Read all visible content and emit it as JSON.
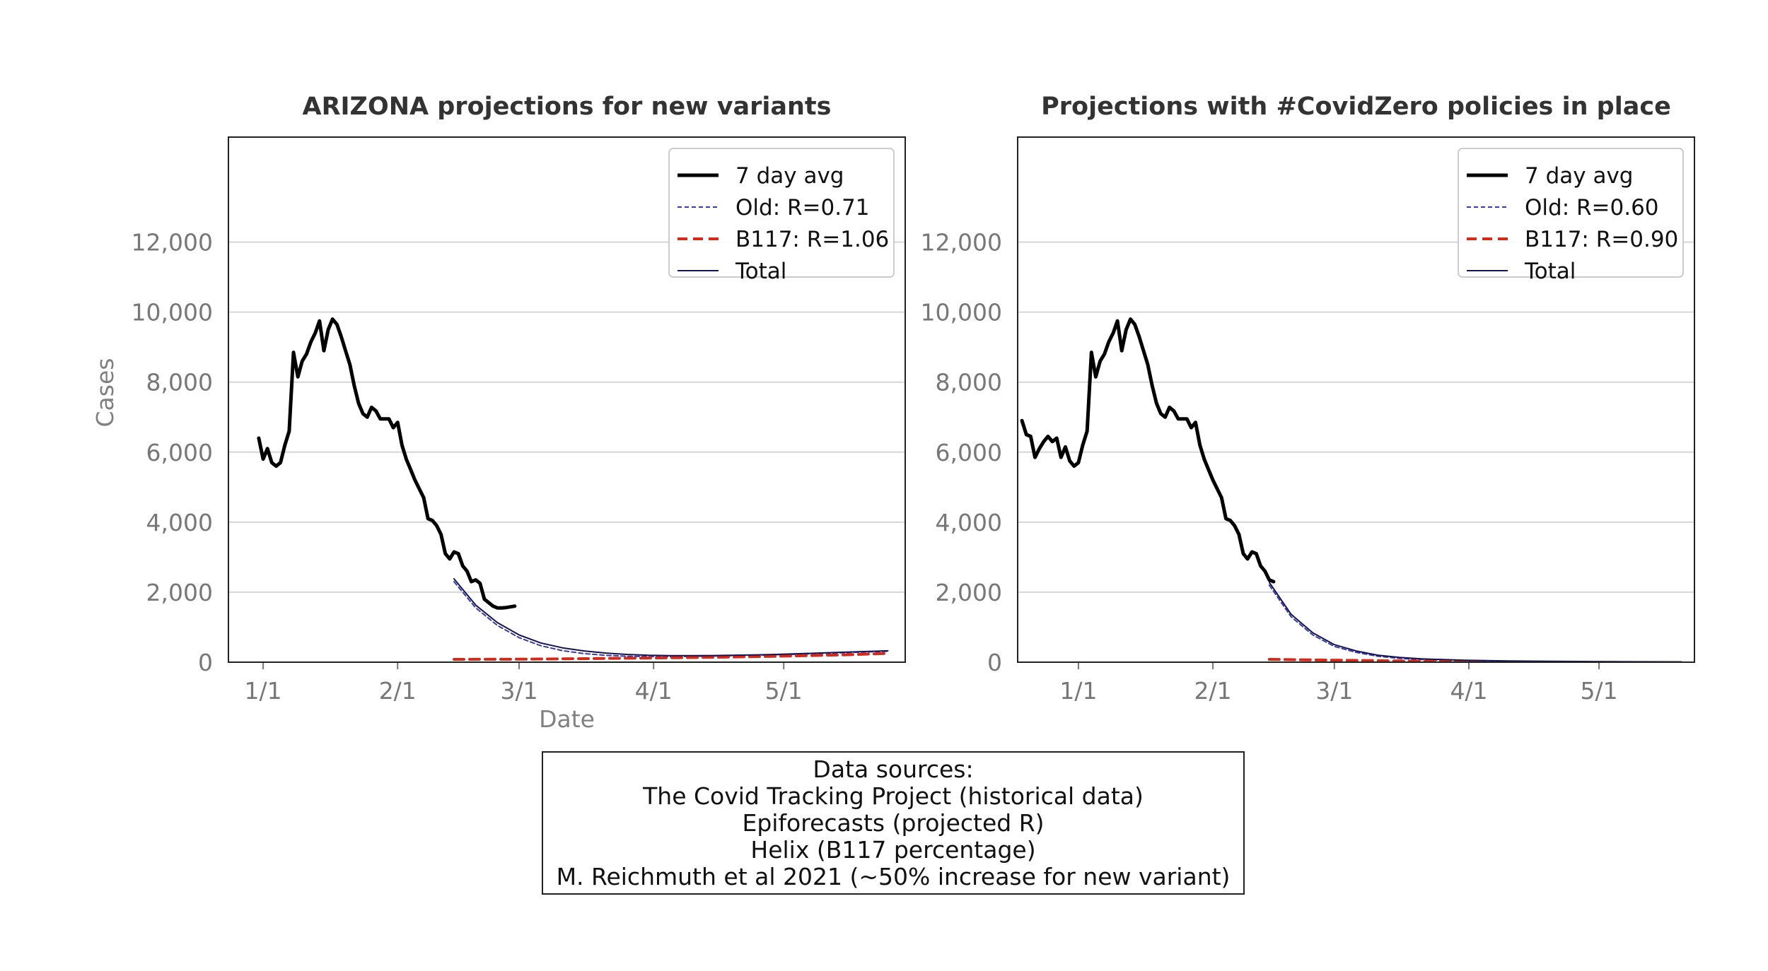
{
  "colors": {
    "observed": "#000000",
    "old": "#3a3aa8",
    "b117": "#d42a1a",
    "total": "#141450",
    "grid": "#d6d6d6",
    "ticks": "#777777"
  },
  "chart_data": [
    {
      "type": "line",
      "title": "ARIZONA projections for new variants",
      "xlabel": "Date",
      "ylabel": "Cases",
      "ylim": [
        0,
        15000
      ],
      "yticks": [
        0,
        2000,
        4000,
        6000,
        8000,
        10000,
        12000
      ],
      "ytick_labels": [
        "0",
        "2,000",
        "4,000",
        "6,000",
        "8,000",
        "10,000",
        "12,000"
      ],
      "xlim": [
        -7,
        149
      ],
      "xticks": [
        1,
        32,
        60,
        91,
        121
      ],
      "xtick_labels": [
        "1/1",
        "2/1",
        "3/1",
        "4/1",
        "5/1"
      ],
      "grid": "horizontal",
      "legend_position": "top-right",
      "series": [
        {
          "name": "7 day avg",
          "style": "observed",
          "x": [
            0,
            1,
            2,
            3,
            4,
            5,
            6,
            7,
            8,
            9,
            10,
            11,
            12,
            13,
            14,
            15,
            16,
            17,
            18,
            19,
            20,
            21,
            22,
            23,
            24,
            25,
            26,
            27,
            28,
            29,
            30,
            31,
            32,
            33,
            34,
            35,
            36,
            37,
            38,
            39,
            40,
            41,
            42,
            43,
            44,
            45,
            46,
            47,
            48,
            49,
            50,
            51,
            52,
            53,
            54,
            55,
            56,
            57,
            58,
            59
          ],
          "values": [
            6400,
            5800,
            6100,
            5700,
            5600,
            5700,
            6200,
            6600,
            8850,
            8150,
            8600,
            8800,
            9150,
            9400,
            9750,
            8900,
            9500,
            9800,
            9650,
            9300,
            8900,
            8500,
            7900,
            7400,
            7100,
            7000,
            7280,
            7180,
            6950,
            6950,
            6950,
            6700,
            6850,
            6200,
            5800,
            5500,
            5200,
            4950,
            4700,
            4100,
            4050,
            3900,
            3650,
            3100,
            2950,
            3150,
            3100,
            2750,
            2600,
            2300,
            2350,
            2250,
            1800,
            1700,
            1600,
            1550,
            1550,
            1560,
            1580,
            1600
          ]
        },
        {
          "name": "Old: R=0.71",
          "style": "old",
          "x": [
            45,
            50,
            55,
            60,
            65,
            70,
            75,
            80,
            85,
            90,
            95,
            100,
            105,
            110,
            115,
            120,
            125,
            130,
            135,
            140,
            145
          ],
          "values": [
            2300,
            1550,
            1050,
            700,
            470,
            330,
            245,
            195,
            170,
            160,
            160,
            165,
            175,
            185,
            200,
            215,
            230,
            250,
            270,
            290,
            310
          ]
        },
        {
          "name": "B117: R=1.06",
          "style": "b117",
          "x": [
            45,
            60,
            75,
            90,
            105,
            120,
            135,
            145
          ],
          "values": [
            80,
            85,
            100,
            120,
            140,
            170,
            210,
            250
          ]
        },
        {
          "name": "Total",
          "style": "total",
          "x": [
            45,
            50,
            55,
            60,
            65,
            70,
            75,
            80,
            85,
            90,
            95,
            100,
            105,
            110,
            115,
            120,
            125,
            130,
            135,
            140,
            145
          ],
          "values": [
            2380,
            1630,
            1130,
            780,
            550,
            410,
            320,
            260,
            220,
            195,
            185,
            185,
            190,
            200,
            210,
            225,
            245,
            265,
            285,
            305,
            325
          ]
        }
      ]
    },
    {
      "type": "line",
      "title": "Projections with #CovidZero policies in place",
      "xlabel": "",
      "ylabel": "",
      "ylim": [
        0,
        15000
      ],
      "yticks": [
        0,
        2000,
        4000,
        6000,
        8000,
        10000,
        12000
      ],
      "ytick_labels": [
        "0",
        "2,000",
        "4,000",
        "6,000",
        "8,000",
        "10,000",
        "12,000"
      ],
      "xlim": [
        -13,
        143
      ],
      "xticks": [
        1,
        32,
        60,
        91,
        121
      ],
      "xtick_labels": [
        "1/1",
        "2/1",
        "3/1",
        "4/1",
        "5/1"
      ],
      "grid": "horizontal",
      "legend_position": "top-right",
      "series": [
        {
          "name": "7 day avg",
          "style": "observed",
          "x": [
            -12,
            -11,
            -10,
            -9,
            -8,
            -7,
            -6,
            -5,
            -4,
            -3,
            -2,
            -1,
            0,
            1,
            2,
            3,
            4,
            5,
            6,
            7,
            8,
            9,
            10,
            11,
            12,
            13,
            14,
            15,
            16,
            17,
            18,
            19,
            20,
            21,
            22,
            23,
            24,
            25,
            26,
            27,
            28,
            29,
            30,
            31,
            32,
            33,
            34,
            35,
            36,
            37,
            38,
            39,
            40,
            41,
            42,
            43,
            44,
            45,
            46
          ],
          "values": [
            6900,
            6500,
            6450,
            5850,
            6100,
            6300,
            6450,
            6300,
            6400,
            5850,
            6150,
            5750,
            5600,
            5700,
            6200,
            6600,
            8850,
            8150,
            8600,
            8800,
            9150,
            9400,
            9750,
            8900,
            9500,
            9800,
            9650,
            9300,
            8900,
            8500,
            7900,
            7400,
            7100,
            7000,
            7280,
            7180,
            6950,
            6950,
            6950,
            6700,
            6850,
            6200,
            5800,
            5500,
            5200,
            4950,
            4700,
            4100,
            4050,
            3900,
            3650,
            3100,
            2950,
            3150,
            3100,
            2750,
            2600,
            2350,
            2300
          ]
        },
        {
          "name": "Old: R=0.60",
          "style": "old",
          "x": [
            45,
            50,
            55,
            60,
            65,
            70,
            75,
            80,
            90,
            100,
            110,
            120,
            130,
            140
          ],
          "values": [
            2200,
            1300,
            780,
            450,
            280,
            170,
            110,
            75,
            40,
            25,
            15,
            10,
            8,
            5
          ]
        },
        {
          "name": "B117: R=0.90",
          "style": "b117",
          "x": [
            45,
            55,
            65,
            75,
            85,
            95
          ],
          "values": [
            80,
            65,
            50,
            35,
            25,
            15
          ]
        },
        {
          "name": "Total",
          "style": "total",
          "x": [
            45,
            50,
            55,
            60,
            65,
            70,
            75,
            80,
            90,
            100,
            110,
            120,
            130,
            140
          ],
          "values": [
            2280,
            1370,
            840,
            500,
            320,
            200,
            135,
            95,
            55,
            35,
            25,
            18,
            12,
            10
          ]
        }
      ]
    }
  ],
  "sources": {
    "lines": [
      "Data sources:",
      "The Covid Tracking Project (historical data)",
      "Epiforecasts (projected R)",
      "Helix (B117 percentage)",
      "M. Reichmuth et al 2021 (~50% increase for new variant)"
    ]
  }
}
